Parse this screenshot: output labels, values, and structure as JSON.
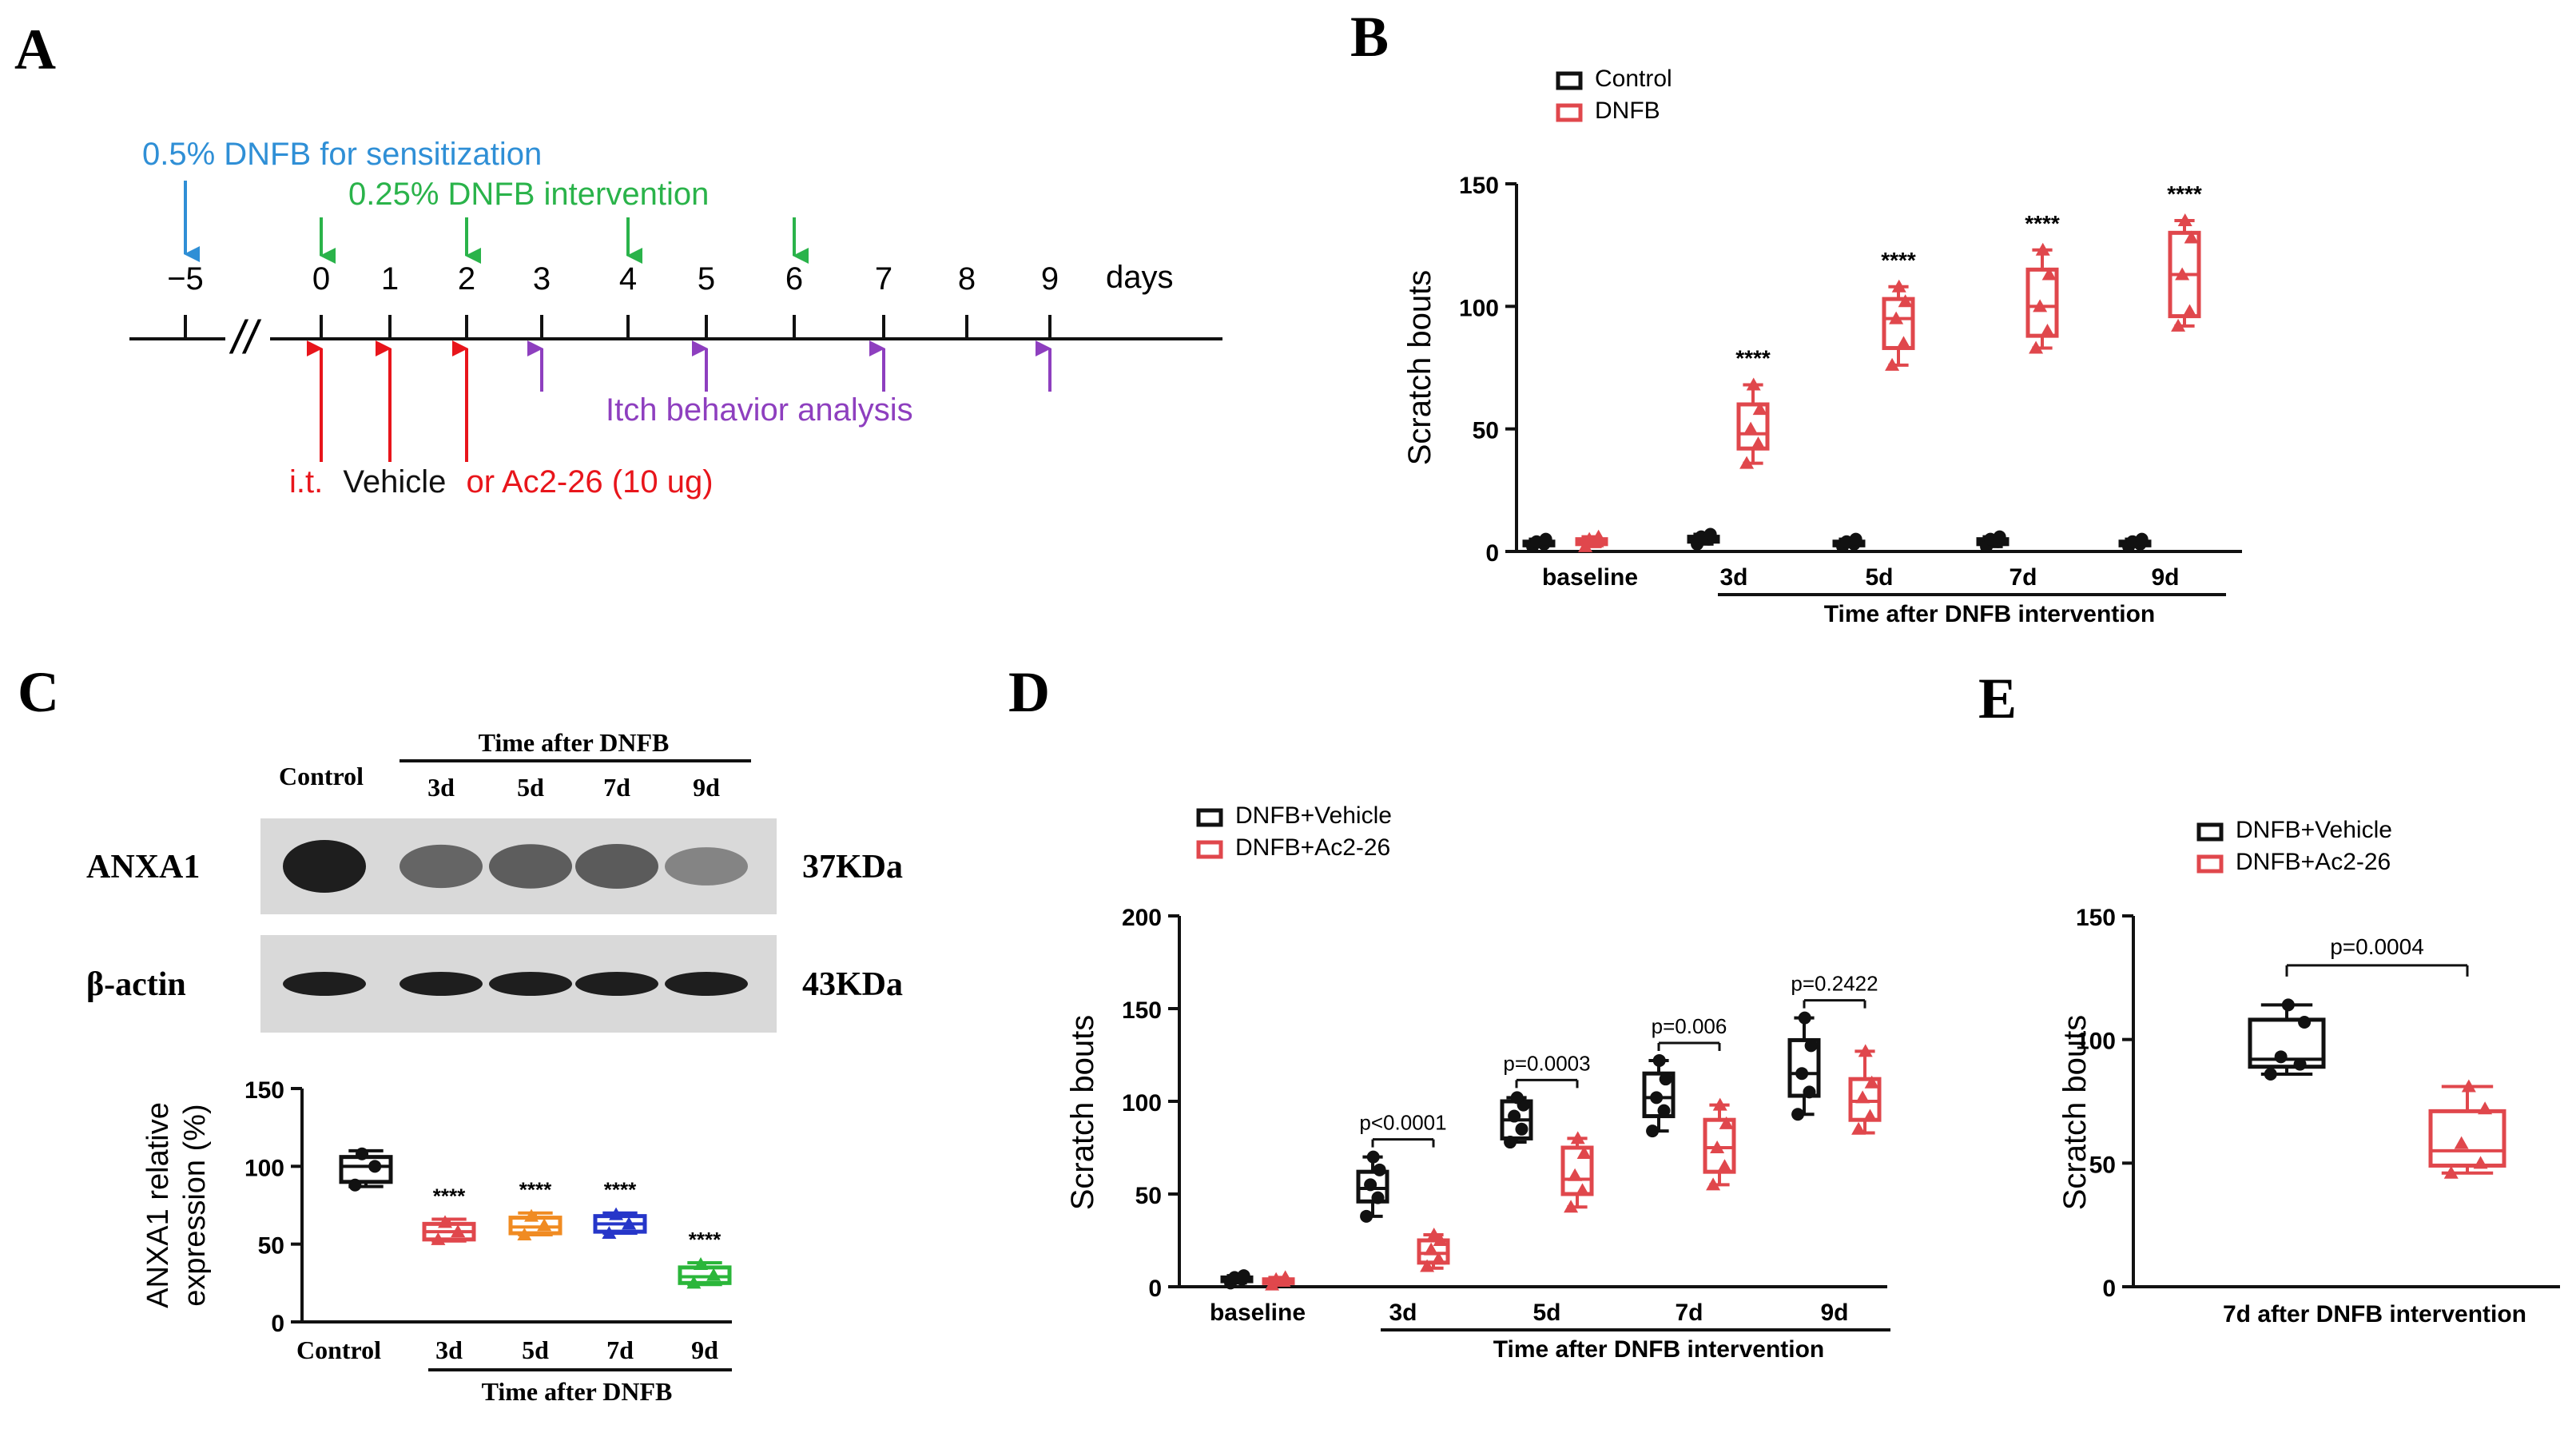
{
  "panels": {
    "A": "A",
    "B": "B",
    "C": "C",
    "D": "D",
    "E": "E"
  },
  "colors": {
    "control": "#111111",
    "dnfb": "#e0474c",
    "blue_text": "#2f8fd6",
    "green_text": "#2ab34a",
    "red_arrow": "#e8151b",
    "purple": "#8e3fbf",
    "c_3d": "#e0474c",
    "c_5d": "#f08b22",
    "c_7d": "#2636c9",
    "c_9d": "#2bb63a"
  },
  "timeline": {
    "ticks": [
      "−5",
      "0",
      "1",
      "2",
      "3",
      "4",
      "5",
      "6",
      "7",
      "8",
      "9"
    ],
    "days_label": "days",
    "break_mark": "//",
    "sensitization": "0.5% DNFB for sensitization",
    "intervention": "0.25% DNFB intervention",
    "itch_analysis": "Itch behavior analysis",
    "treatment_prefix": "i.t.",
    "treatment_vehicle": "Vehicle",
    "treatment_drug": "or Ac2-26 (10 ug)",
    "sensitization_day": -5,
    "intervention_days": [
      0,
      2,
      4,
      6
    ],
    "treatment_days": [
      0,
      1,
      2
    ],
    "analysis_days": [
      3,
      5,
      7,
      9
    ]
  },
  "blot": {
    "header": "Time after DNFB",
    "lanes": [
      "Control",
      "3d",
      "5d",
      "7d",
      "9d"
    ],
    "rows": [
      {
        "name": "ANXA1",
        "size": "37KDa",
        "intensity": [
          1.0,
          0.55,
          0.6,
          0.62,
          0.3
        ]
      },
      {
        "name": "β-actin",
        "size": "43KDa",
        "intensity": [
          1.0,
          1.0,
          1.0,
          1.0,
          1.0
        ]
      }
    ]
  },
  "chart_data": [
    {
      "panel": "B",
      "type": "box",
      "ylabel": "Scratch bouts",
      "ylim": [
        0,
        150
      ],
      "yticks": [
        0,
        50,
        100,
        150
      ],
      "categories": [
        "baseline",
        "3d",
        "5d",
        "7d",
        "9d"
      ],
      "group_label": "Time after DNFB intervention",
      "legend_position": "top-left",
      "series": [
        {
          "name": "Control",
          "boxes": [
            {
              "min": 2,
              "q1": 2.5,
              "median": 3,
              "q3": 4,
              "max": 5,
              "points": [
                2,
                3,
                4,
                5
              ]
            },
            {
              "min": 3,
              "q1": 4,
              "median": 5,
              "q3": 6,
              "max": 7,
              "points": [
                3,
                5,
                6,
                7
              ]
            },
            {
              "min": 2,
              "q1": 2.5,
              "median": 3,
              "q3": 4,
              "max": 5,
              "points": [
                2,
                3,
                4,
                5
              ]
            },
            {
              "min": 2,
              "q1": 3,
              "median": 4,
              "q3": 5,
              "max": 6,
              "points": [
                2,
                4,
                5,
                6
              ]
            },
            {
              "min": 2,
              "q1": 2.5,
              "median": 3,
              "q3": 4,
              "max": 5,
              "points": [
                2,
                3,
                4,
                5
              ]
            }
          ]
        },
        {
          "name": "DNFB",
          "boxes": [
            {
              "min": 2,
              "q1": 3,
              "median": 4,
              "q3": 5,
              "max": 6,
              "points": [
                2,
                4,
                5,
                6
              ]
            },
            {
              "min": 36,
              "q1": 42,
              "median": 48,
              "q3": 60,
              "max": 68,
              "points": [
                36,
                44,
                50,
                58,
                68
              ]
            },
            {
              "min": 76,
              "q1": 83,
              "median": 95,
              "q3": 103,
              "max": 108,
              "points": [
                76,
                85,
                95,
                102,
                108
              ]
            },
            {
              "min": 83,
              "q1": 88,
              "median": 100,
              "q3": 115,
              "max": 123,
              "points": [
                83,
                90,
                100,
                113,
                123
              ]
            },
            {
              "min": 92,
              "q1": 96,
              "median": 113,
              "q3": 130,
              "max": 135,
              "points": [
                92,
                98,
                113,
                128,
                135
              ]
            }
          ]
        }
      ],
      "annotations": [
        "",
        "****",
        "****",
        "****",
        "****"
      ]
    },
    {
      "panel": "C",
      "type": "box",
      "ylabel": "ANXA1 relative\nexpression (%)",
      "ylim": [
        0,
        150
      ],
      "yticks": [
        0,
        50,
        100,
        150
      ],
      "categories": [
        "Control",
        "3d",
        "5d",
        "7d",
        "9d"
      ],
      "group_label": "Time after DNFB",
      "boxes": [
        {
          "min": 87,
          "q1": 90,
          "median": 100,
          "q3": 106,
          "max": 110,
          "points": [
            88,
            100,
            108
          ]
        },
        {
          "min": 52,
          "q1": 53,
          "median": 58,
          "q3": 63,
          "max": 66,
          "points": [
            53,
            58,
            64
          ]
        },
        {
          "min": 56,
          "q1": 57,
          "median": 61,
          "q3": 67,
          "max": 70,
          "points": [
            56,
            62,
            68
          ]
        },
        {
          "min": 57,
          "q1": 58,
          "median": 63,
          "q3": 68,
          "max": 70,
          "points": [
            57,
            63,
            69
          ]
        },
        {
          "min": 24,
          "q1": 25,
          "median": 29,
          "q3": 35,
          "max": 38,
          "points": [
            25,
            30,
            37
          ]
        }
      ],
      "annotations": [
        "",
        "****",
        "****",
        "****",
        "****"
      ]
    },
    {
      "panel": "D",
      "type": "box",
      "ylabel": "Scratch bouts",
      "ylim": [
        0,
        200
      ],
      "yticks": [
        0,
        50,
        100,
        150,
        200
      ],
      "categories": [
        "baseline",
        "3d",
        "5d",
        "7d",
        "9d"
      ],
      "group_label": "Time after DNFB intervention",
      "legend_position": "top-left",
      "series": [
        {
          "name": "DNFB+Vehicle",
          "boxes": [
            {
              "min": 2,
              "q1": 3,
              "median": 4,
              "q3": 5,
              "max": 6,
              "points": [
                2,
                4,
                5,
                6
              ]
            },
            {
              "min": 38,
              "q1": 46,
              "median": 53,
              "q3": 62,
              "max": 70,
              "points": [
                38,
                48,
                55,
                63,
                70
              ]
            },
            {
              "min": 78,
              "q1": 80,
              "median": 90,
              "q3": 100,
              "max": 102,
              "points": [
                78,
                85,
                92,
                98,
                102
              ]
            },
            {
              "min": 84,
              "q1": 92,
              "median": 102,
              "q3": 115,
              "max": 122,
              "points": [
                84,
                95,
                102,
                112,
                122
              ]
            },
            {
              "min": 93,
              "q1": 103,
              "median": 115,
              "q3": 133,
              "max": 145,
              "points": [
                93,
                105,
                115,
                130,
                145
              ]
            }
          ]
        },
        {
          "name": "DNFB+Ac2-26",
          "boxes": [
            {
              "min": 1,
              "q1": 2,
              "median": 3,
              "q3": 4,
              "max": 5,
              "points": [
                1,
                3,
                4,
                5
              ]
            },
            {
              "min": 10,
              "q1": 13,
              "median": 18,
              "q3": 25,
              "max": 28,
              "points": [
                11,
                15,
                20,
                25,
                28
              ]
            },
            {
              "min": 43,
              "q1": 50,
              "median": 58,
              "q3": 75,
              "max": 80,
              "points": [
                43,
                52,
                60,
                72,
                80
              ]
            },
            {
              "min": 55,
              "q1": 62,
              "median": 75,
              "q3": 90,
              "max": 98,
              "points": [
                55,
                65,
                75,
                88,
                98
              ]
            },
            {
              "min": 83,
              "q1": 90,
              "median": 100,
              "q3": 112,
              "max": 127,
              "points": [
                85,
                92,
                102,
                110,
                127
              ]
            }
          ]
        }
      ],
      "annotations": [
        "",
        "p<0.0001",
        "p=0.0003",
        "p=0.006",
        "p=0.2422"
      ]
    },
    {
      "panel": "E",
      "type": "box",
      "ylabel": "Scratch bouts",
      "ylim": [
        0,
        150
      ],
      "yticks": [
        0,
        50,
        100,
        150
      ],
      "categories": [
        "7d after DNFB intervention"
      ],
      "legend_position": "top-left",
      "series": [
        {
          "name": "DNFB+Vehicle",
          "boxes": [
            {
              "min": 86,
              "q1": 89,
              "median": 92,
              "q3": 108,
              "max": 114,
              "points": [
                86,
                90,
                93,
                107,
                114
              ]
            }
          ]
        },
        {
          "name": "DNFB+Ac2-26",
          "boxes": [
            {
              "min": 46,
              "q1": 49,
              "median": 55,
              "q3": 71,
              "max": 81,
              "points": [
                46,
                50,
                58,
                72,
                81
              ]
            }
          ]
        }
      ],
      "annotations": [
        "p=0.0004"
      ]
    }
  ]
}
